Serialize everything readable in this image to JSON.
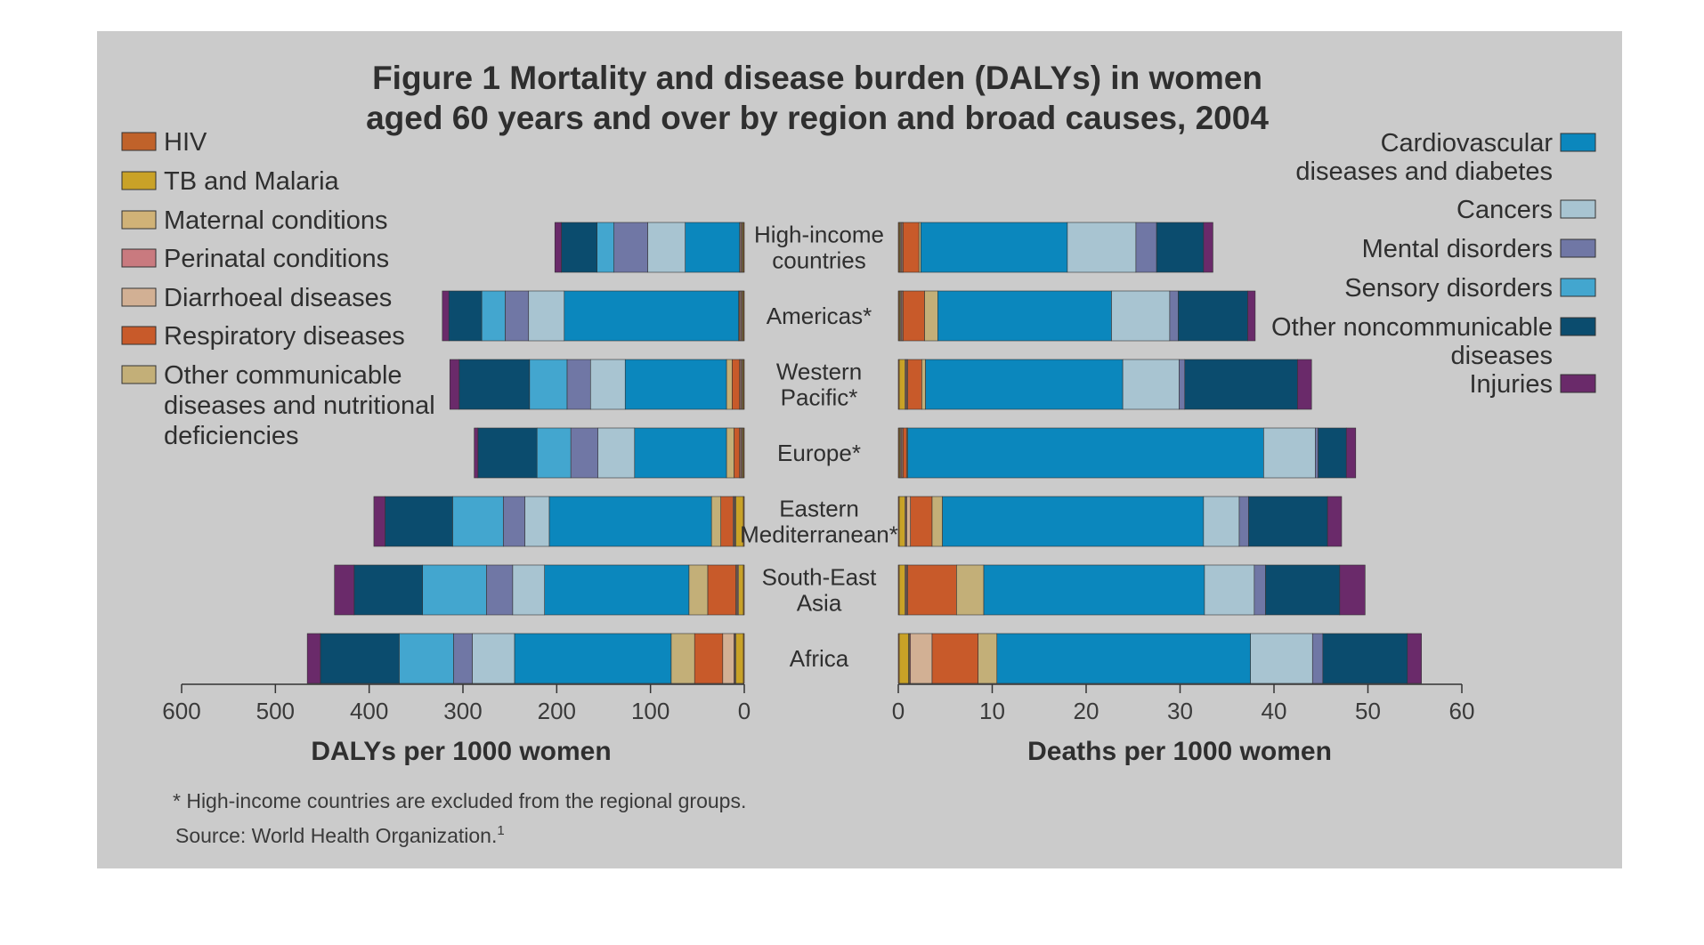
{
  "chart_data": {
    "type": "bar",
    "orientation": "horizontal-diverging",
    "title_lines": [
      "Figure 1 Mortality and disease burden (DALYs) in women",
      "aged 60 years and over by region and broad causes, 2004"
    ],
    "categories": [
      [
        "High-income",
        "countries"
      ],
      [
        "Americas*"
      ],
      [
        "Western",
        "Pacific*"
      ],
      [
        "Europe*"
      ],
      [
        "Eastern",
        "Mediterranean*"
      ],
      [
        "South-East",
        "Asia"
      ],
      [
        "Africa"
      ]
    ],
    "causes": [
      {
        "name": "HIV",
        "color": "#c0622a"
      },
      {
        "name": "TB and Malaria",
        "color": "#c9a227"
      },
      {
        "name": "Maternal conditions",
        "color": "#d0b277"
      },
      {
        "name": "Perinatal conditions",
        "color": "#c97a7f"
      },
      {
        "name": "Diarrhoeal diseases",
        "color": "#d2b094"
      },
      {
        "name": "Respiratory diseases",
        "color": "#c85a2a"
      },
      {
        "name": "Other communicable diseases and nutritional deficiencies",
        "color": "#c3af78"
      },
      {
        "name": "Cardiovascular diseases and diabetes",
        "color": "#0b87bd"
      },
      {
        "name": "Cancers",
        "color": "#a8c4d1"
      },
      {
        "name": "Mental disorders",
        "color": "#7077a5"
      },
      {
        "name": "Sensory disorders",
        "color": "#43a6cf"
      },
      {
        "name": "Other noncommunicable diseases",
        "color": "#0b4c6e"
      },
      {
        "name": "Injuries",
        "color": "#6a2a6a"
      }
    ],
    "left_panel": {
      "xlabel": "DALYs per 1000 women",
      "xlim": [
        600,
        0
      ],
      "ticks": [
        600,
        500,
        400,
        300,
        200,
        100,
        0
      ],
      "values": [
        [
          1,
          1,
          1,
          1,
          1,
          0,
          0,
          58,
          40,
          36,
          18,
          38,
          7
        ],
        [
          1,
          1,
          1,
          1,
          1,
          1,
          0,
          186,
          38,
          25,
          25,
          35,
          7
        ],
        [
          1,
          1,
          1,
          1,
          1,
          8,
          6,
          108,
          37,
          25,
          40,
          75,
          10
        ],
        [
          1,
          1,
          1,
          1,
          1,
          6,
          8,
          98,
          39,
          29,
          36,
          63,
          4
        ],
        [
          1,
          8,
          1,
          1,
          1,
          13,
          10,
          173,
          26,
          23,
          54,
          72,
          12
        ],
        [
          1,
          5,
          1,
          1,
          1,
          30,
          20,
          154,
          34,
          28,
          68,
          73,
          21
        ],
        [
          1,
          8,
          1,
          1,
          12,
          30,
          25,
          167,
          45,
          20,
          58,
          84,
          14
        ]
      ]
    },
    "right_panel": {
      "xlabel": "Deaths per 1000 women",
      "xlim": [
        0,
        60
      ],
      "ticks": [
        0,
        10,
        20,
        30,
        40,
        50,
        60
      ],
      "values": [
        [
          0.1,
          0.1,
          0.1,
          0.1,
          0.1,
          1.7,
          0.2,
          15.6,
          7.3,
          2.2,
          0,
          5.0,
          1.0
        ],
        [
          0.1,
          0.1,
          0.1,
          0.1,
          0.1,
          2.3,
          1.4,
          18.5,
          6.2,
          0.9,
          0,
          7.4,
          0.8
        ],
        [
          0.1,
          0.6,
          0.1,
          0.1,
          0.1,
          1.5,
          0.4,
          21.0,
          6.0,
          0.6,
          0,
          12.0,
          1.5
        ],
        [
          0.1,
          0.1,
          0.1,
          0.1,
          0.1,
          0.4,
          0.1,
          37.9,
          5.5,
          0.3,
          0,
          3.0,
          1.0
        ],
        [
          0.1,
          0.6,
          0.1,
          0.1,
          0.4,
          2.3,
          1.1,
          27.8,
          3.8,
          1.0,
          0,
          8.4,
          1.5
        ],
        [
          0.1,
          0.6,
          0.1,
          0.1,
          0.1,
          5.2,
          2.9,
          23.5,
          5.3,
          1.2,
          0,
          7.9,
          2.7
        ],
        [
          0.1,
          1.0,
          0.1,
          0.1,
          2.3,
          4.9,
          2.0,
          27.0,
          6.6,
          1.1,
          0,
          9.0,
          1.5
        ]
      ]
    },
    "footnote": "* High-income countries are excluded from the regional groups.",
    "source": "Source: World Health Organization.",
    "source_superscript": "1"
  }
}
